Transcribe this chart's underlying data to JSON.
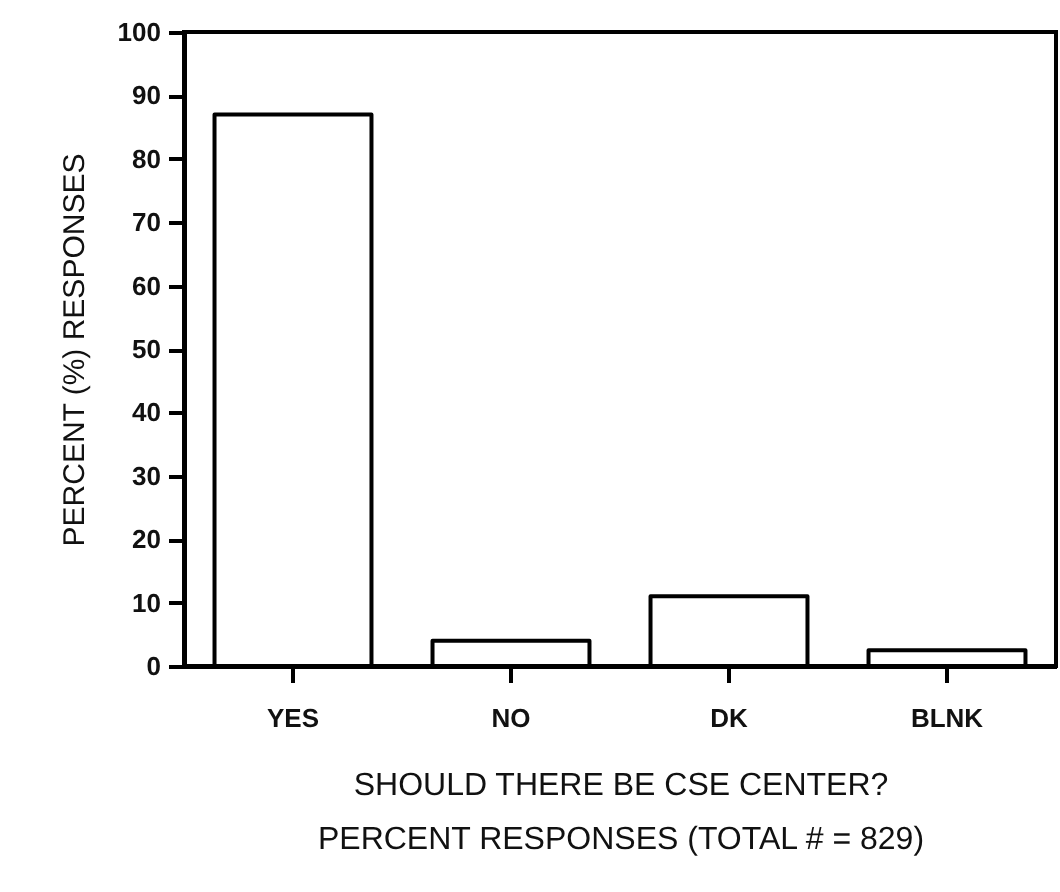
{
  "chart_data": {
    "type": "bar",
    "xlabel": "SHOULD THERE BE CSE CENTER?",
    "ylabel": "PERCENT (%) RESPONSES",
    "categories": [
      "YES",
      "NO",
      "DK",
      "BLNK"
    ],
    "values": [
      87,
      4,
      11,
      2.5
    ],
    "color": "#ffffff",
    "ylim": [
      0,
      100
    ],
    "yticks": [
      0,
      10,
      20,
      30,
      40,
      50,
      60,
      70,
      80,
      90,
      100
    ],
    "annotations": [
      "PERCENT RESPONSES (TOTAL # = 829)"
    ]
  }
}
